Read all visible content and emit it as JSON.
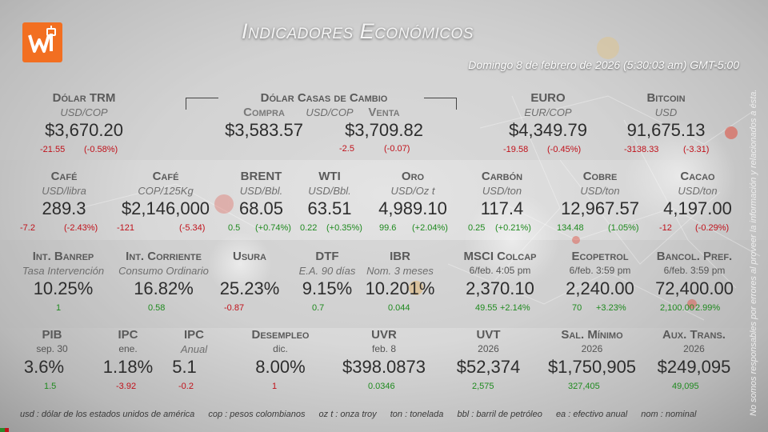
{
  "title": "Indicadores Económicos",
  "datetime": "Domingo 8 de febrero de 2026 (5:30:03 am) GMT-5:00",
  "side_note": "No somos responsables por errores al proveer la información y relacionados a ésta.",
  "row1": [
    {
      "name": "Dólar TRM",
      "unit": "USD/COP",
      "value": "$3,670.20",
      "chg": "-21.55",
      "pct": "(-0.58%)",
      "trend": "neg"
    },
    {
      "name": "Compra",
      "value": "$3,583.57"
    },
    {
      "name": "Venta",
      "value": "$3,709.82",
      "chg": "-2.5",
      "pct": "(-0.07)",
      "trend": "neg"
    },
    {
      "name": "EURO",
      "unit": "EUR/COP",
      "value": "$4,349.79",
      "chg": "-19.58",
      "pct": "(-0.45%)",
      "trend": "neg"
    },
    {
      "name": "Bitcoin",
      "unit": "USD",
      "value": "91,675.13",
      "chg": "-3138.33",
      "pct": "(-3.31)",
      "trend": "neg"
    }
  ],
  "casas": {
    "name": "Dólar Casas de Cambio",
    "unit": "USD/COP"
  },
  "row2": [
    {
      "name": "Café",
      "unit": "USD/libra",
      "value": "289.3",
      "chg": "-7.2",
      "pct": "(-2.43%)",
      "trend": "neg"
    },
    {
      "name": "Café",
      "unit": "COP/125Kg",
      "value": "$2,146,000",
      "chg": "-121",
      "pct": "(-5.34)",
      "trend": "neg"
    },
    {
      "name": "BRENT",
      "unit": "USD/Bbl.",
      "value": "68.05",
      "chg": "0.5",
      "pct": "(+0.74%)",
      "trend": "pos"
    },
    {
      "name": "WTI",
      "unit": "USD/Bbl.",
      "value": "63.51",
      "chg": "0.22",
      "pct": "(+0.35%)",
      "trend": "pos"
    },
    {
      "name": "Oro",
      "unit": "USD/Oz t",
      "value": "4,989.10",
      "chg": "99.6",
      "pct": "(+2.04%)",
      "trend": "pos"
    },
    {
      "name": "Carbón",
      "unit": "USD/ton",
      "value": "117.4",
      "chg": "0.25",
      "pct": "(+0.21%)",
      "trend": "pos"
    },
    {
      "name": "Cobre",
      "unit": "USD/ton",
      "value": "12,967.57",
      "chg": "134.48",
      "pct": "(1.05%)",
      "trend": "pos"
    },
    {
      "name": "Cacao",
      "unit": "USD/ton",
      "value": "4,197.00",
      "chg": "-12",
      "pct": "(-0.29%)",
      "trend": "neg"
    }
  ],
  "row3": [
    {
      "name": "Int. Banrep",
      "unit": "Tasa Intervención",
      "value": "10.25%",
      "chg": "1",
      "trend": "pos"
    },
    {
      "name": "Int. Corriente",
      "unit": "Consumo Ordinario",
      "value": "16.82%",
      "chg": "0.58",
      "trend": "pos"
    },
    {
      "name": "Usura",
      "unit": "",
      "value": "25.23%",
      "chg": "-0.87",
      "trend": "neg"
    },
    {
      "name": "DTF",
      "unit": "E.A. 90 días",
      "value": "9.15%",
      "chg": "0.7",
      "trend": "pos"
    },
    {
      "name": "IBR",
      "unit": "Nom. 3 meses",
      "value": "10.201%",
      "chg": "0.044",
      "trend": "pos"
    },
    {
      "name": "MSCI Colcap",
      "unit": "6/feb. 4:05 pm",
      "value": "2,370.10",
      "chg": "49.55",
      "pct": "+2.14%",
      "trend": "pos"
    },
    {
      "name": "Ecopetrol",
      "unit": "6/feb. 3:59 pm",
      "value": "2,240.00",
      "chg": "70",
      "pct": "+3.23%",
      "trend": "pos"
    },
    {
      "name": "Bancol. Pref.",
      "unit": "6/feb. 3:59 pm",
      "value": "72,400.00",
      "chg": "2,100.00",
      "pct": "2.99%",
      "trend": "pos"
    }
  ],
  "row4": [
    {
      "name": "PIB",
      "unit": "sep. 30",
      "value": "3.6%",
      "chg": "1.5",
      "trend": "pos"
    },
    {
      "name": "IPC",
      "unit": "ene.",
      "value": "1.18%",
      "chg": "-3.92",
      "trend": "neg"
    },
    {
      "name": "IPC",
      "unit": "Anual",
      "value": "5.1",
      "chg": "-0.2",
      "trend": "neg"
    },
    {
      "name": "Desempleo",
      "unit": "dic.",
      "value": "8.00%",
      "chg": "1",
      "trend": "neg"
    },
    {
      "name": "UVR",
      "unit": "feb. 8",
      "value": "$398.0873",
      "chg": "0.0346",
      "trend": "pos"
    },
    {
      "name": "UVT",
      "unit": "2026",
      "value": "$52,374",
      "chg": "2,575",
      "trend": "pos"
    },
    {
      "name": "Sal. Mínimo",
      "unit": "2026",
      "value": "$1,750,905",
      "chg": "327,405",
      "trend": "pos"
    },
    {
      "name": "Aux. Trans.",
      "unit": "2026",
      "value": "$249,095",
      "chg": "49,095",
      "trend": "pos"
    }
  ],
  "legend": [
    "usd : dólar de los estados unidos de américa",
    "cop : pesos colombianos",
    "oz t : onza troy",
    "ton : tonelada",
    "bbl : barril de petróleo",
    "ea : efectivo anual",
    "nom : nominal"
  ]
}
